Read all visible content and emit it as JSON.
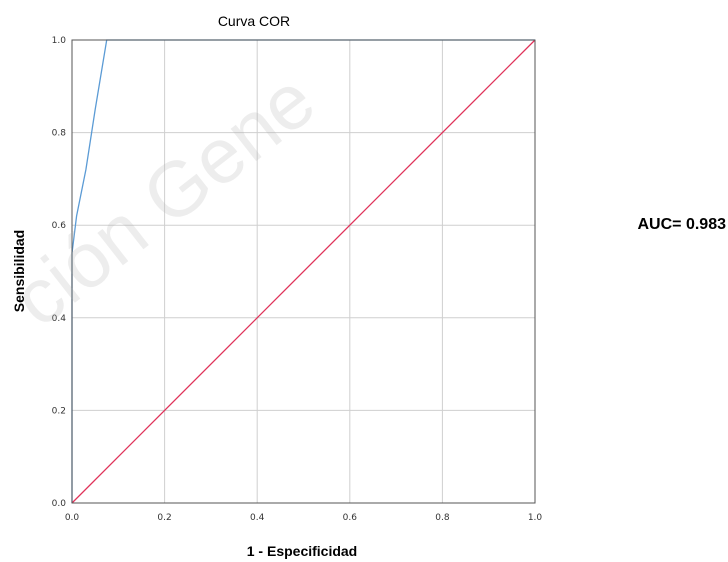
{
  "chart_data": {
    "type": "line",
    "title": "Curva COR",
    "xlabel": "1 - Especificidad",
    "ylabel": "Sensibilidad",
    "xlim": [
      0,
      1
    ],
    "ylim": [
      0,
      1
    ],
    "x_ticks": [
      "0.0",
      "0.2",
      "0.4",
      "0.6",
      "0.8",
      "1.0"
    ],
    "y_ticks": [
      "0.0",
      "0.2",
      "0.4",
      "0.6",
      "0.8",
      "1.0"
    ],
    "grid": true,
    "series": [
      {
        "color": "#5b9bd5",
        "points": [
          [
            0,
            0
          ],
          [
            0,
            0.54
          ],
          [
            0.01,
            0.62
          ],
          [
            0.03,
            0.72
          ],
          [
            0.05,
            0.85
          ],
          [
            0.075,
            1.0
          ],
          [
            1.0,
            1.0
          ]
        ]
      },
      {
        "color": "#e0335a",
        "points": [
          [
            0,
            0
          ],
          [
            1.0,
            1.0
          ]
        ]
      }
    ],
    "annotation": "AUC= 0.983"
  },
  "watermark": "ción Gene"
}
